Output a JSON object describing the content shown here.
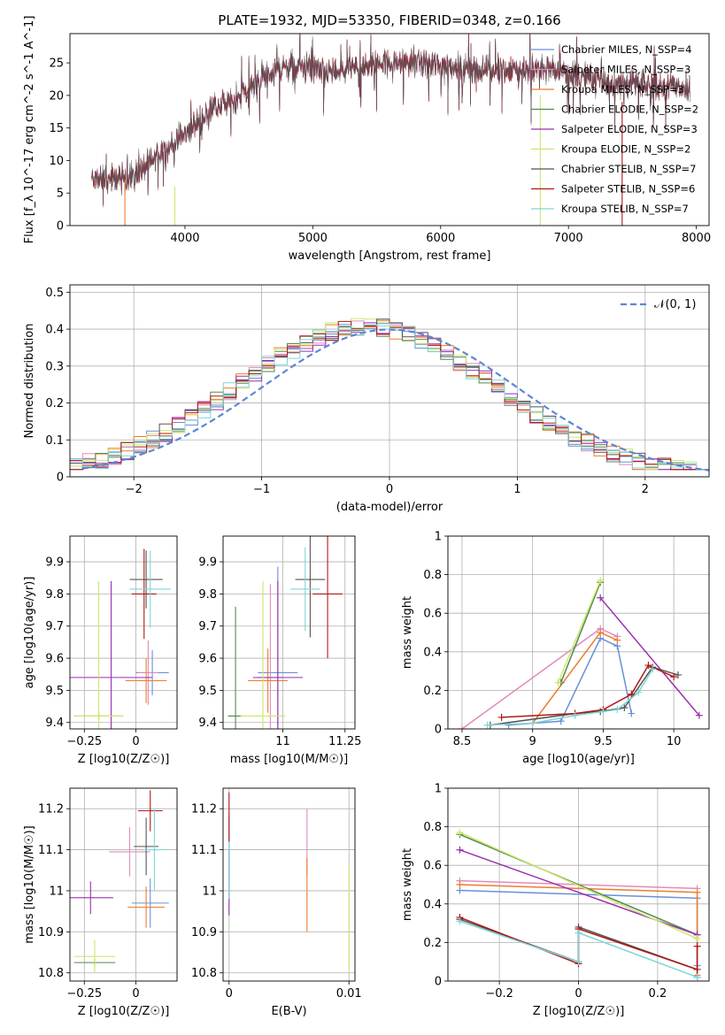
{
  "title": "PLATE=1932, MJD=53350, FIBERID=0348, z=0.166",
  "series_legend": [
    {
      "name": "Chabrier MILES, N_SSP=4",
      "color": "#6a8fd8"
    },
    {
      "name": "Salpeter MILES, N_SSP=3",
      "color": "#e08bbd"
    },
    {
      "name": "Kroupa MILES, N_SSP=3",
      "color": "#ee7c2c"
    },
    {
      "name": "Chabrier ELODIE, N_SSP=2",
      "color": "#4f8a4f"
    },
    {
      "name": "Salpeter ELODIE, N_SSP=3",
      "color": "#9b2fb0"
    },
    {
      "name": "Kroupa ELODIE, N_SSP=2",
      "color": "#cde66b"
    },
    {
      "name": "Chabrier STELIB, N_SSP=7",
      "color": "#555555"
    },
    {
      "name": "Salpeter STELIB, N_SSP=6",
      "color": "#b01818"
    },
    {
      "name": "Kroupa STELIB, N_SSP=7",
      "color": "#7fd6d6"
    }
  ],
  "chart_data": [
    {
      "id": "spectrum",
      "type": "line",
      "xlabel": "wavelength [Angstrom, rest frame]",
      "ylabel": "Flux [f_λ 10^-17 erg cm^-2 s^-1 A^-1]",
      "xlim": [
        3100,
        8100
      ],
      "ylim": [
        0,
        29.5
      ],
      "xticks": [
        4000,
        5000,
        6000,
        7000,
        8000
      ],
      "yticks": [
        0,
        5,
        10,
        15,
        20,
        25
      ],
      "grid": false,
      "legend": "right",
      "envelope_x": [
        3270,
        3400,
        3600,
        3800,
        4000,
        4200,
        4400,
        4600,
        4800,
        5000,
        5200,
        5400,
        5600,
        5800,
        6000,
        6200,
        6400,
        6600,
        6800,
        7000,
        7200,
        7400,
        7600,
        7800,
        7950
      ],
      "envelope_y": [
        7.2,
        7.0,
        7.6,
        11.0,
        14.0,
        17.5,
        19.5,
        22.5,
        24.5,
        24.0,
        23.5,
        24.5,
        25.0,
        25.0,
        24.8,
        24.0,
        24.0,
        23.8,
        24.0,
        23.5,
        22.5,
        22.0,
        21.5,
        21.5,
        21.0
      ]
    },
    {
      "id": "residuals",
      "type": "line",
      "xlabel": "(data-model)/error",
      "ylabel": "Normed distribution",
      "xlim": [
        -2.5,
        2.5
      ],
      "ylim": [
        0,
        0.52
      ],
      "xticks": [
        -2,
        -1,
        0,
        1,
        2
      ],
      "yticks": [
        0.0,
        0.1,
        0.2,
        0.3,
        0.4,
        0.5
      ],
      "grid": true,
      "legend": "top-right",
      "legend_label": "𝒩(0, 1)",
      "gaussian": {
        "mu": 0,
        "sigma": 1
      }
    },
    {
      "id": "age_vs_Z",
      "type": "scatter",
      "xlabel": "Z [log10(Z/Z☉)]",
      "ylabel": "age [log10(age/yr)]",
      "xlim": [
        -0.32,
        0.2
      ],
      "ylim": [
        9.38,
        9.98
      ],
      "xticks": [
        -0.25,
        0.0
      ],
      "yticks": [
        9.4,
        9.5,
        9.6,
        9.7,
        9.8,
        9.9
      ],
      "grid": true,
      "points": [
        {
          "s": 0,
          "x": 0.08,
          "y": 9.555,
          "ex": 0.08,
          "ey": 0.07
        },
        {
          "s": 1,
          "x": 0.06,
          "y": 9.555,
          "ex": 0.05,
          "ey": 0.1
        },
        {
          "s": 2,
          "x": 0.05,
          "y": 9.53,
          "ex": 0.1,
          "ey": 0.07
        },
        {
          "s": 3,
          "x": -0.18,
          "y": 9.42,
          "ex": 0.12,
          "ey": 0.01
        },
        {
          "s": 4,
          "x": -0.12,
          "y": 9.54,
          "ex": 0.2,
          "ey": 0.3
        },
        {
          "s": 5,
          "x": -0.18,
          "y": 9.42,
          "ex": 0.12,
          "ey": 0.42
        },
        {
          "s": 6,
          "x": 0.05,
          "y": 9.845,
          "ex": 0.08,
          "ey": 0.09
        },
        {
          "s": 7,
          "x": 0.04,
          "y": 9.8,
          "ex": 0.06,
          "ey": 0.14
        },
        {
          "s": 8,
          "x": 0.07,
          "y": 9.815,
          "ex": 0.1,
          "ey": 0.12
        }
      ]
    },
    {
      "id": "age_vs_mass",
      "type": "scatter",
      "xlabel": "mass [log10(M/M☉)]",
      "ylabel": "",
      "xlim": [
        10.76,
        11.29
      ],
      "ylim": [
        9.38,
        9.98
      ],
      "xticks": [
        11.0,
        11.25
      ],
      "yticks": [
        9.4,
        9.5,
        9.6,
        9.7,
        9.8,
        9.9
      ],
      "grid": true,
      "points": [
        {
          "s": 0,
          "x": 10.98,
          "y": 9.555,
          "ex": 0.08,
          "ey": 0.33
        },
        {
          "s": 1,
          "x": 10.95,
          "y": 9.54,
          "ex": 0.05,
          "ey": 0.29
        },
        {
          "s": 2,
          "x": 10.94,
          "y": 9.53,
          "ex": 0.08,
          "ey": 0.1
        },
        {
          "s": 3,
          "x": 10.81,
          "y": 9.42,
          "ex": 0.03,
          "ey": 0.34
        },
        {
          "s": 4,
          "x": 10.98,
          "y": 9.54,
          "ex": 0.1,
          "ey": 0.3
        },
        {
          "s": 5,
          "x": 10.92,
          "y": 9.42,
          "ex": 0.09,
          "ey": 0.42
        },
        {
          "s": 6,
          "x": 11.11,
          "y": 9.845,
          "ex": 0.06,
          "ey": 0.18
        },
        {
          "s": 7,
          "x": 11.18,
          "y": 9.8,
          "ex": 0.06,
          "ey": 0.2
        },
        {
          "s": 8,
          "x": 11.09,
          "y": 9.815,
          "ex": 0.06,
          "ey": 0.13
        }
      ]
    },
    {
      "id": "weight_vs_age",
      "type": "line",
      "xlabel": "age [log10(age/yr)]",
      "ylabel": "mass weight",
      "xlim": [
        8.4,
        10.25
      ],
      "ylim": [
        0,
        1.0
      ],
      "xticks": [
        8.5,
        9.0,
        9.5,
        10.0
      ],
      "yticks": [
        0.0,
        0.2,
        0.4,
        0.6,
        0.8,
        1.0
      ],
      "grid": true,
      "series": [
        {
          "s": 0,
          "x": [
            8.83,
            9.2,
            9.48,
            9.6,
            9.7
          ],
          "y": [
            0.02,
            0.04,
            0.47,
            0.43,
            0.08
          ]
        },
        {
          "s": 1,
          "x": [
            8.5,
            9.48,
            9.6
          ],
          "y": [
            0.0,
            0.52,
            0.48
          ]
        },
        {
          "s": 2,
          "x": [
            9.0,
            9.48,
            9.6
          ],
          "y": [
            0.03,
            0.5,
            0.46
          ]
        },
        {
          "s": 3,
          "x": [
            9.2,
            9.48
          ],
          "y": [
            0.24,
            0.76
          ]
        },
        {
          "s": 4,
          "x": [
            9.48,
            10.18
          ],
          "y": [
            0.68,
            0.07
          ]
        },
        {
          "s": 5,
          "x": [
            9.18,
            9.48
          ],
          "y": [
            0.24,
            0.77
          ]
        },
        {
          "s": 6,
          "x": [
            8.7,
            9.3,
            9.48,
            9.65,
            9.85,
            10.03
          ],
          "y": [
            0.02,
            0.08,
            0.09,
            0.11,
            0.32,
            0.28
          ]
        },
        {
          "s": 7,
          "x": [
            8.78,
            9.3,
            9.5,
            9.7,
            9.82,
            10.0
          ],
          "y": [
            0.06,
            0.08,
            0.1,
            0.18,
            0.33,
            0.27
          ]
        },
        {
          "s": 8,
          "x": [
            8.68,
            9.0,
            9.3,
            9.5,
            9.6,
            9.75,
            9.85
          ],
          "y": [
            0.02,
            0.03,
            0.07,
            0.09,
            0.1,
            0.19,
            0.31
          ]
        }
      ]
    },
    {
      "id": "mass_vs_Z",
      "type": "scatter",
      "xlabel": "Z [log10(Z/Z☉)]",
      "ylabel": "mass [log10(M/M☉)]",
      "xlim": [
        -0.32,
        0.2
      ],
      "ylim": [
        10.78,
        11.25
      ],
      "xticks": [
        -0.25,
        0.0
      ],
      "yticks": [
        10.8,
        10.9,
        11.0,
        11.1,
        11.2
      ],
      "grid": true,
      "points": [
        {
          "s": 0,
          "x": 0.07,
          "y": 10.97,
          "ex": 0.09,
          "ey": 0.06
        },
        {
          "s": 1,
          "x": -0.03,
          "y": 11.095,
          "ex": 0.1,
          "ey": 0.06
        },
        {
          "s": 2,
          "x": 0.05,
          "y": 10.96,
          "ex": 0.09,
          "ey": 0.05
        },
        {
          "s": 3,
          "x": -0.2,
          "y": 10.825,
          "ex": 0.1,
          "ey": 0.01
        },
        {
          "s": 4,
          "x": -0.22,
          "y": 10.983,
          "ex": 0.11,
          "ey": 0.04
        },
        {
          "s": 5,
          "x": -0.2,
          "y": 10.84,
          "ex": 0.1,
          "ey": 0.04
        },
        {
          "s": 6,
          "x": 0.05,
          "y": 11.108,
          "ex": 0.06,
          "ey": 0.07
        },
        {
          "s": 7,
          "x": 0.07,
          "y": 11.195,
          "ex": 0.06,
          "ey": 0.05
        },
        {
          "s": 8,
          "x": 0.09,
          "y": 11.1,
          "ex": 0.05,
          "ey": 0.1
        }
      ]
    },
    {
      "id": "mass_vs_ebv",
      "type": "scatter",
      "xlabel": "E(B-V)",
      "ylabel": "",
      "xlim": [
        -0.0005,
        0.0105
      ],
      "ylim": [
        10.78,
        11.25
      ],
      "xticks": [
        0.0,
        0.01
      ],
      "yticks": [
        10.8,
        10.9,
        11.0,
        11.1,
        11.2
      ],
      "grid": true,
      "points": [
        {
          "s": 0,
          "x": 0.0,
          "y": 11.1,
          "ex": 0,
          "ey": 0.08
        },
        {
          "s": 7,
          "x": 0.0,
          "y": 11.18,
          "ex": 0,
          "ey": 0.06
        },
        {
          "s": 4,
          "x": 0.0,
          "y": 11.02,
          "ex": 0,
          "ey": 0.08
        },
        {
          "s": 8,
          "x": 0.0,
          "y": 11.05,
          "ex": 0,
          "ey": 0.07
        },
        {
          "s": 1,
          "x": 0.0065,
          "y": 11.12,
          "ex": 0,
          "ey": 0.08
        },
        {
          "s": 2,
          "x": 0.0065,
          "y": 10.99,
          "ex": 0,
          "ey": 0.09
        },
        {
          "s": 5,
          "x": 0.01,
          "y": 10.93,
          "ex": 0,
          "ey": 0.13
        }
      ]
    },
    {
      "id": "weight_vs_Z",
      "type": "line",
      "xlabel": "Z [log10(Z/Z☉)]",
      "ylabel": "mass weight",
      "xlim": [
        -0.33,
        0.33
      ],
      "ylim": [
        0,
        1.0
      ],
      "xticks": [
        -0.2,
        0.0,
        0.2
      ],
      "yticks": [
        0.0,
        0.2,
        0.4,
        0.6,
        0.8,
        1.0
      ],
      "grid": true,
      "series": [
        {
          "s": 0,
          "x": [
            -0.3,
            0.3,
            0.3
          ],
          "y": [
            0.47,
            0.43,
            0.08
          ]
        },
        {
          "s": 1,
          "x": [
            -0.3,
            0.3
          ],
          "y": [
            0.52,
            0.48
          ]
        },
        {
          "s": 2,
          "x": [
            -0.3,
            0.3,
            0.3
          ],
          "y": [
            0.5,
            0.46,
            0.03
          ]
        },
        {
          "s": 3,
          "x": [
            -0.3,
            0.3
          ],
          "y": [
            0.76,
            0.24
          ]
        },
        {
          "s": 4,
          "x": [
            -0.3,
            0.3
          ],
          "y": [
            0.68,
            0.24
          ]
        },
        {
          "s": 5,
          "x": [
            -0.3,
            0.3
          ],
          "y": [
            0.77,
            0.22
          ]
        },
        {
          "s": 6,
          "x": [
            -0.3,
            0.0,
            0.0,
            0.3,
            0.3
          ],
          "y": [
            0.32,
            0.1,
            0.28,
            0.06,
            0.02
          ]
        },
        {
          "s": 7,
          "x": [
            -0.3,
            0.0,
            0.0,
            0.3,
            0.3
          ],
          "y": [
            0.33,
            0.09,
            0.27,
            0.06,
            0.18
          ]
        },
        {
          "s": 8,
          "x": [
            -0.3,
            0.0,
            0.0,
            0.3,
            0.3
          ],
          "y": [
            0.31,
            0.1,
            0.25,
            0.02,
            0.02
          ]
        }
      ]
    }
  ]
}
